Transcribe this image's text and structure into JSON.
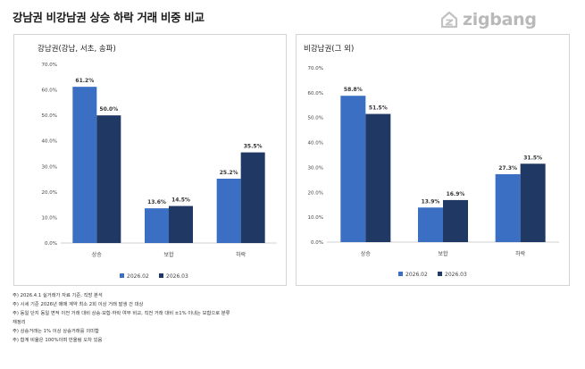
{
  "page": {
    "title": "강남권 비강남권 상승 하락 거래 비중 비교",
    "logo_text": "zigbang",
    "notes": [
      "주) 2026.4.1 실거래가 자료 기준, 직방 분석",
      "주) 시세 기준 2026년 매매 계약 최소 2회 이상 거래 발생 건 대상",
      "주) 동일 단지 동일 면적 이전 거래 대비 상승·보합·하락 여부 비교, 직전 거래 대비 ±1% 이내는 보합으로 분류",
      "재정리",
      "주) 상승거래는 1% 이상 상승거래를 의미함",
      "주) 합계 비율은 100%이며 반올림 오차 있음"
    ]
  },
  "chart_data": [
    {
      "type": "bar",
      "title": "강남권(강남, 서초, 송파)",
      "categories": [
        "상승",
        "보합",
        "하락"
      ],
      "series": [
        {
          "name": "2026.02",
          "values": [
            61.2,
            13.6,
            25.2
          ],
          "labels": [
            "61.2%",
            "13.6%",
            "25.2%"
          ]
        },
        {
          "name": "2026.03",
          "values": [
            50.0,
            14.5,
            35.5
          ],
          "labels": [
            "50.0%",
            "14.5%",
            "35.5%"
          ]
        }
      ],
      "yticks": [
        "0.0%",
        "10.0%",
        "20.0%",
        "30.0%",
        "40.0%",
        "50.0%",
        "60.0%",
        "70.0%"
      ],
      "ylim": [
        0,
        70
      ],
      "grid": false,
      "legend": "bottom",
      "colors": [
        "#3a6fc4",
        "#203864"
      ]
    },
    {
      "type": "bar",
      "title": "비강남권(그 외)",
      "categories": [
        "상승",
        "보합",
        "하락"
      ],
      "series": [
        {
          "name": "2026.02",
          "values": [
            58.8,
            13.9,
            27.3
          ],
          "labels": [
            "58.8%",
            "13.9%",
            "27.3%"
          ]
        },
        {
          "name": "2026.03",
          "values": [
            51.5,
            16.9,
            31.5
          ],
          "labels": [
            "51.5%",
            "16.9%",
            "31.5%"
          ]
        }
      ],
      "yticks": [
        "0.0%",
        "10.0%",
        "20.0%",
        "30.0%",
        "40.0%",
        "50.0%",
        "60.0%",
        "70.0%"
      ],
      "ylim": [
        0,
        70
      ],
      "grid": false,
      "legend": "bottom",
      "colors": [
        "#3a6fc4",
        "#203864"
      ]
    }
  ]
}
